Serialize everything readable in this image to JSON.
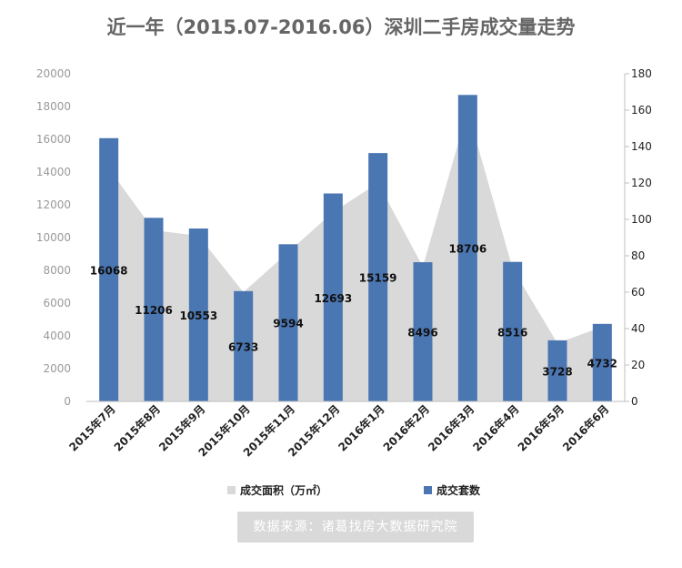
{
  "title": "近一年（2015.07-2016.06）深圳二手房成交量走势",
  "source": "数据来源：诸葛找房大数据研究院",
  "colors": {
    "bar": "#4a76b2",
    "area": "#d9d9d9",
    "axis_text": "#999999",
    "right_axis_text": "#222222",
    "label": "#111111"
  },
  "chart_data": {
    "type": "bar",
    "categories": [
      "2015年7月",
      "2015年8月",
      "2015年9月",
      "2015年10月",
      "2015年11月",
      "2015年12月",
      "2016年1月",
      "2016年2月",
      "2016年3月",
      "2016年4月",
      "2016年5月",
      "2016年6月"
    ],
    "series": [
      {
        "name": "成交套数",
        "type": "bar",
        "axis": "left",
        "values": [
          16068,
          11206,
          10553,
          6733,
          9594,
          12693,
          15159,
          8496,
          18706,
          8516,
          3728,
          4732
        ]
      },
      {
        "name": "成交面积（万㎡）",
        "type": "area",
        "axis": "right",
        "values": [
          128,
          94,
          91,
          60,
          82,
          104,
          120,
          74,
          160,
          73,
          32,
          41
        ]
      }
    ],
    "ylim_left": [
      0,
      20000
    ],
    "yticks_left": [
      0,
      2000,
      4000,
      6000,
      8000,
      10000,
      12000,
      14000,
      16000,
      18000,
      20000
    ],
    "ylim_right": [
      0,
      180
    ],
    "yticks_right": [
      0,
      20,
      40,
      60,
      80,
      100,
      120,
      140,
      160,
      180
    ],
    "grid": false,
    "legend_position": "bottom"
  }
}
